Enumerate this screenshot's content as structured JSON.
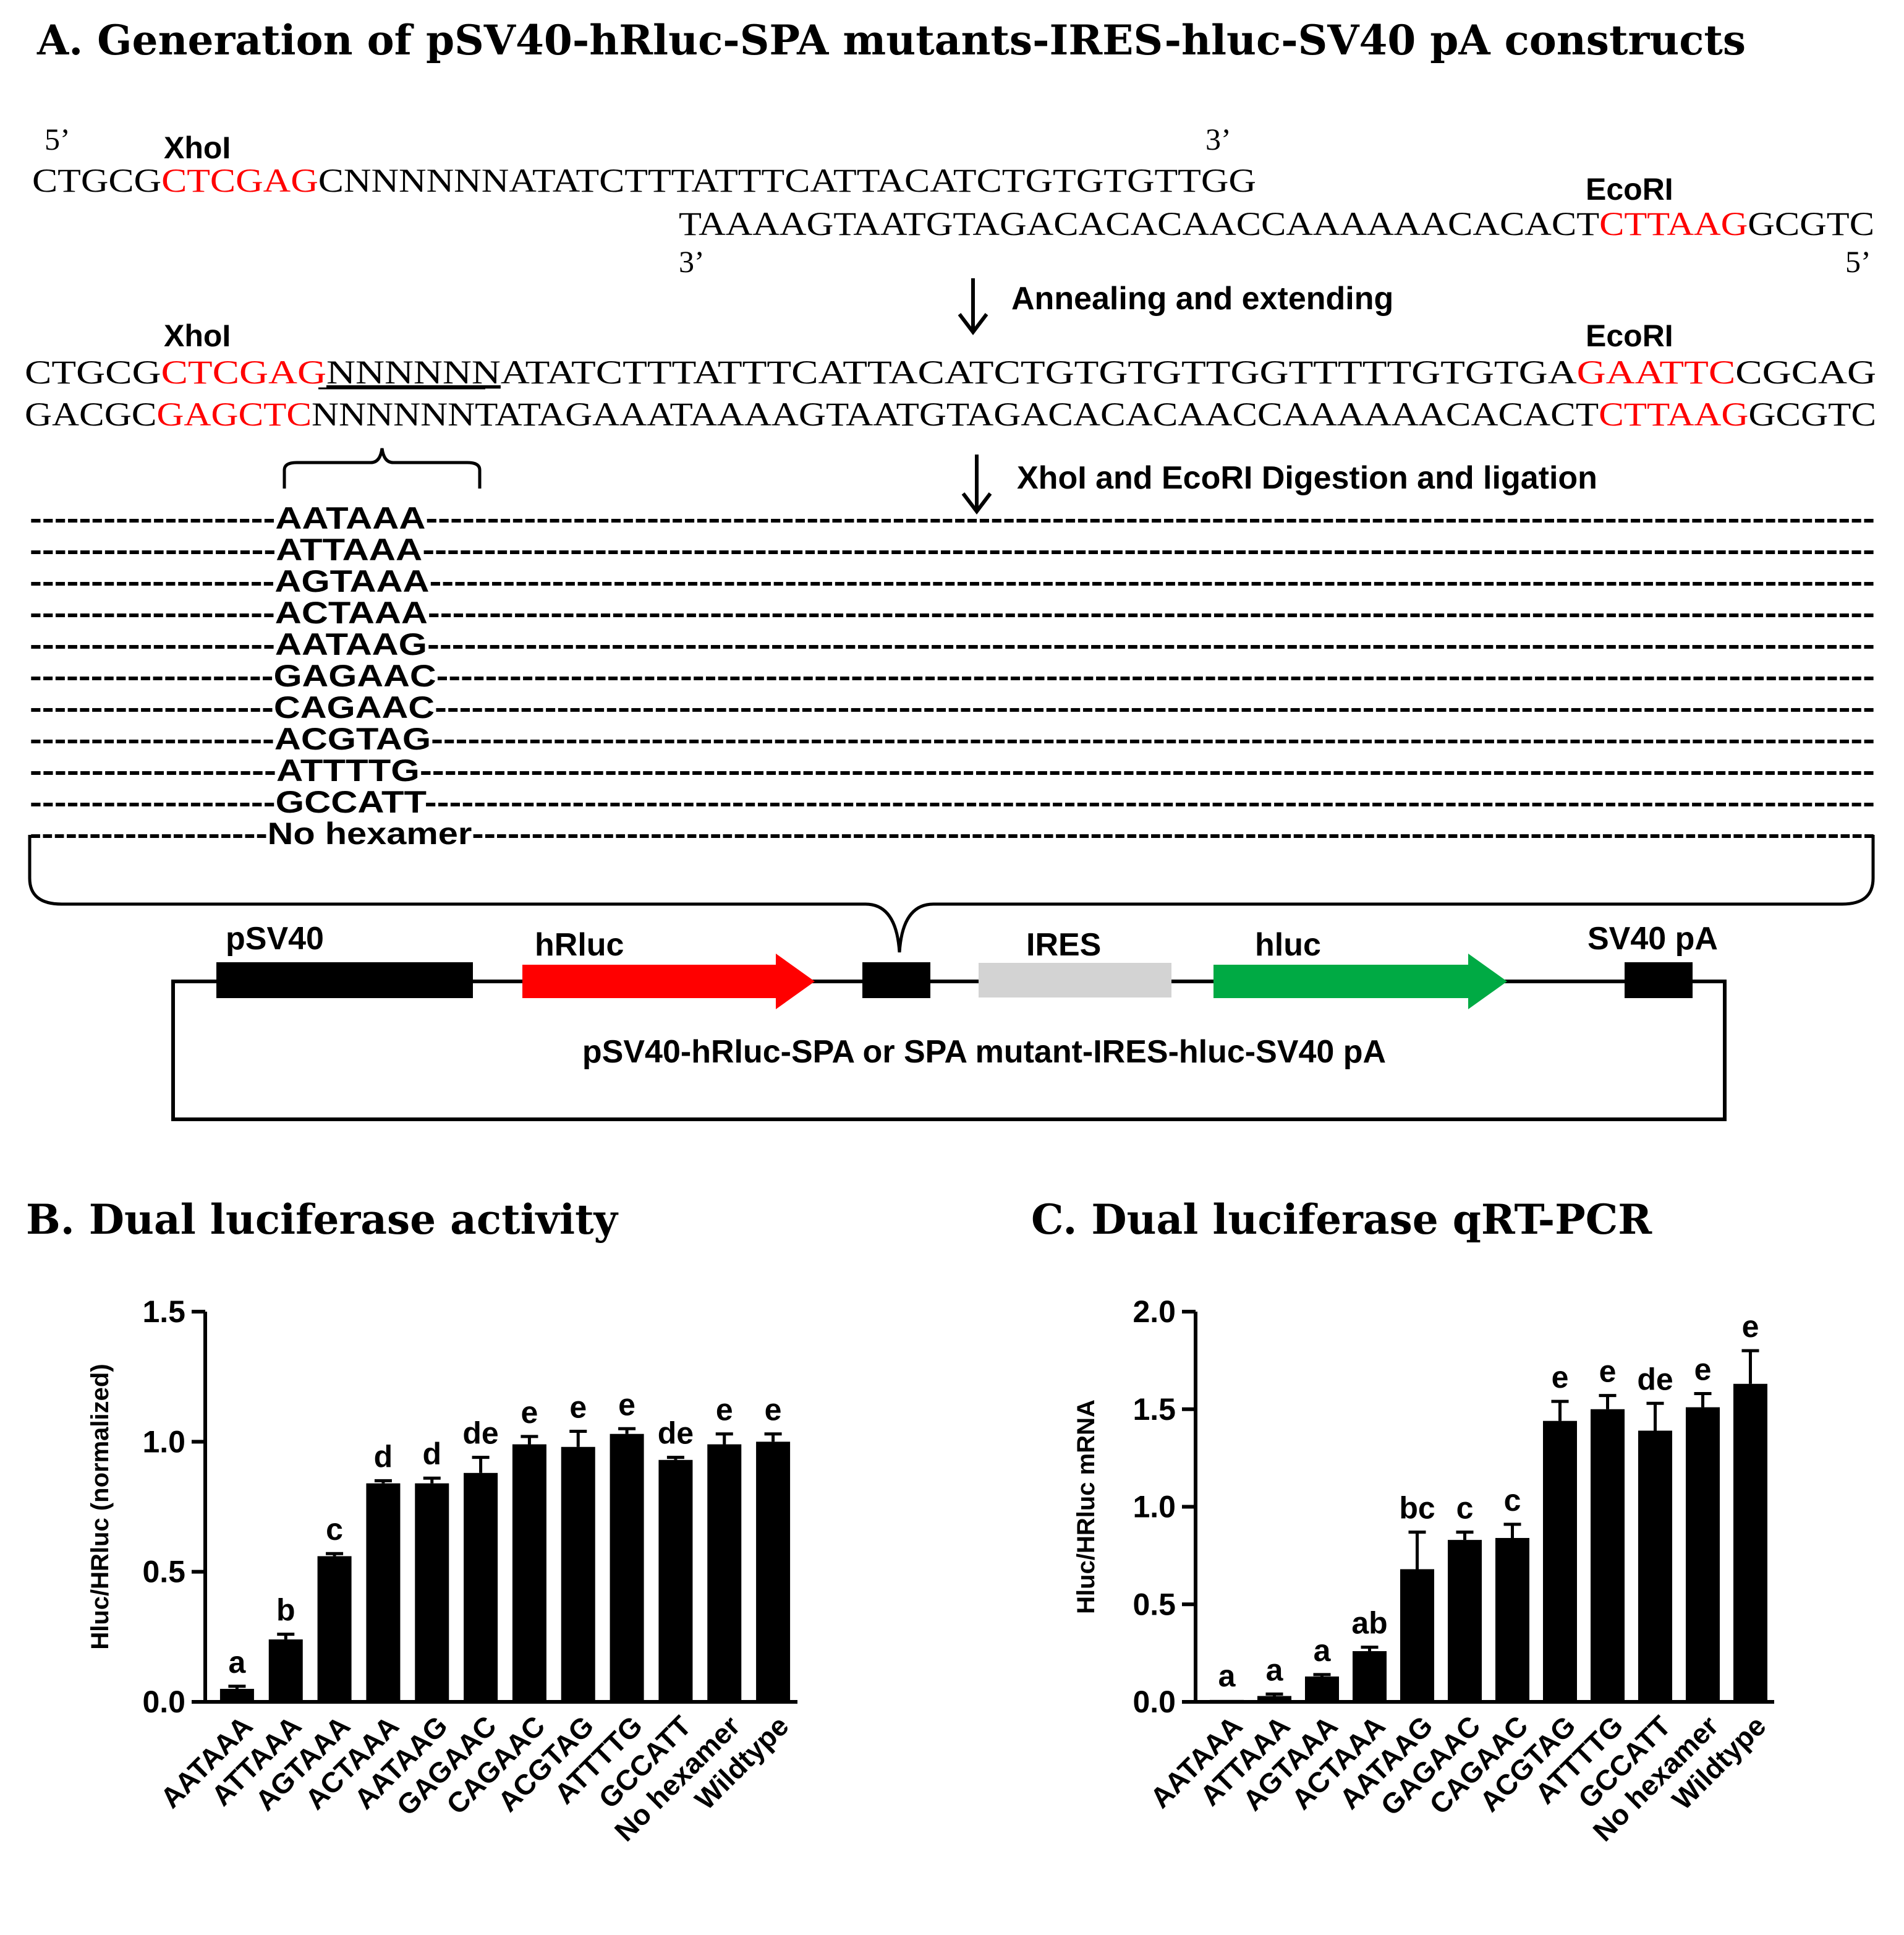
{
  "panel_a": {
    "title": "A. Generation of pSV40-hRluc-SPA mutants-IRES-hluc-SV40 pA constructs",
    "prime5": "5’",
    "prime3": "3’",
    "xhoi": "XhoI",
    "ecori": "EcoRI",
    "oligo1": {
      "pre": "CTGCG",
      "site": "CTCGAG",
      "post": "CNNNNNNATATCTTTATTTCATTACATCTGTGTGTTGG"
    },
    "oligo2": {
      "pre": "TAAAAGTAATGTAGACACACAACCAAAAAACACACT",
      "site": "CTTAAG",
      "post": "GCGTC"
    },
    "step1": "Annealing and extending",
    "ds_top": {
      "pre": "CTGCG",
      "site1": "CTCGAG",
      "n": "NNNNNN",
      "mid": "ATATCTTTATTTCATTACATCTGTGTGTTGGTTTTTGTGTGA",
      "site2": "GAATTC",
      "post": "CGCAG"
    },
    "ds_bot": {
      "pre": "GACGC",
      "site1": "GAGCTC",
      "n": "NNNNNN",
      "mid": "TATAGAAATAAAAGTAATGTAGACACACAACCAAAAAACACACT",
      "site2": "CTTAAG",
      "post": "GCGTC"
    },
    "step2": "XhoI and EcoRI Digestion and ligation",
    "dashes_left": "--------------------",
    "dashes_right": "----------------------------------------------------------------------------------------------------------------------",
    "mutants": [
      "AATAAA",
      "ATTAAA",
      "AGTAAA",
      "ACTAAA",
      "AATAAG",
      "GAGAAC",
      "CAGAAC",
      "ACGTAG",
      "ATTTTG",
      "GCCATT",
      "No  hexamer"
    ],
    "map": {
      "psv40": "pSV40",
      "hrluc": "hRluc",
      "ires": "IRES",
      "hluc": "hluc",
      "sv40pa": "SV40 pA",
      "construct": "pSV40-hRluc-SPA or SPA mutant-IRES-hluc-SV40 pA",
      "colors": {
        "hrluc": "#ff0000",
        "ires": "#d3d3d3",
        "hluc": "#00aa44",
        "block": "#000000"
      }
    }
  },
  "panel_b": {
    "title": "B. Dual luciferase activity"
  },
  "panel_c": {
    "title": "C. Dual luciferase qRT-PCR"
  },
  "chart_data": [
    {
      "type": "bar",
      "title": "B. Dual luciferase activity",
      "xlabel": "",
      "ylabel": "Hluc/HRluc (normalized)",
      "ylim": [
        0,
        1.5
      ],
      "yticks": [
        "0.0",
        "0.5",
        "1.0",
        "1.5"
      ],
      "categories": [
        "AATAAA",
        "ATTAAA",
        "AGTAAA",
        "ACTAAA",
        "AATAAG",
        "GAGAAC",
        "CAGAAC",
        "ACGTAG",
        "ATTTTG",
        "GCCATT",
        "No hexamer",
        "Wildtype"
      ],
      "values": [
        0.05,
        0.24,
        0.56,
        0.84,
        0.84,
        0.88,
        0.99,
        0.98,
        1.03,
        0.93,
        0.99,
        1.0
      ],
      "errors": [
        0.01,
        0.02,
        0.01,
        0.01,
        0.02,
        0.06,
        0.03,
        0.06,
        0.02,
        0.01,
        0.04,
        0.03
      ],
      "letters": [
        "a",
        "b",
        "c",
        "d",
        "d",
        "de",
        "e",
        "e",
        "e",
        "de",
        "e",
        "e"
      ]
    },
    {
      "type": "bar",
      "title": "C. Dual luciferase qRT-PCR",
      "xlabel": "",
      "ylabel": "Hluc/HRluc mRNA",
      "ylim": [
        0,
        2.0
      ],
      "yticks": [
        "0.0",
        "0.5",
        "1.0",
        "1.5",
        "2.0"
      ],
      "categories": [
        "AATAAA",
        "ATTAAA",
        "AGTAAA",
        "ACTAAA",
        "AATAAG",
        "GAGAAC",
        "CAGAAC",
        "ACGTAG",
        "ATTTTG",
        "GCCATT",
        "No hexamer",
        "Wildtype"
      ],
      "values": [
        0.01,
        0.03,
        0.13,
        0.26,
        0.68,
        0.83,
        0.84,
        1.44,
        1.5,
        1.39,
        1.51,
        1.63
      ],
      "errors": [
        0.0,
        0.01,
        0.01,
        0.02,
        0.19,
        0.04,
        0.07,
        0.1,
        0.07,
        0.14,
        0.07,
        0.17
      ],
      "letters": [
        "a",
        "a",
        "a",
        "ab",
        "bc",
        "c",
        "c",
        "e",
        "e",
        "de",
        "e",
        "e"
      ]
    }
  ]
}
